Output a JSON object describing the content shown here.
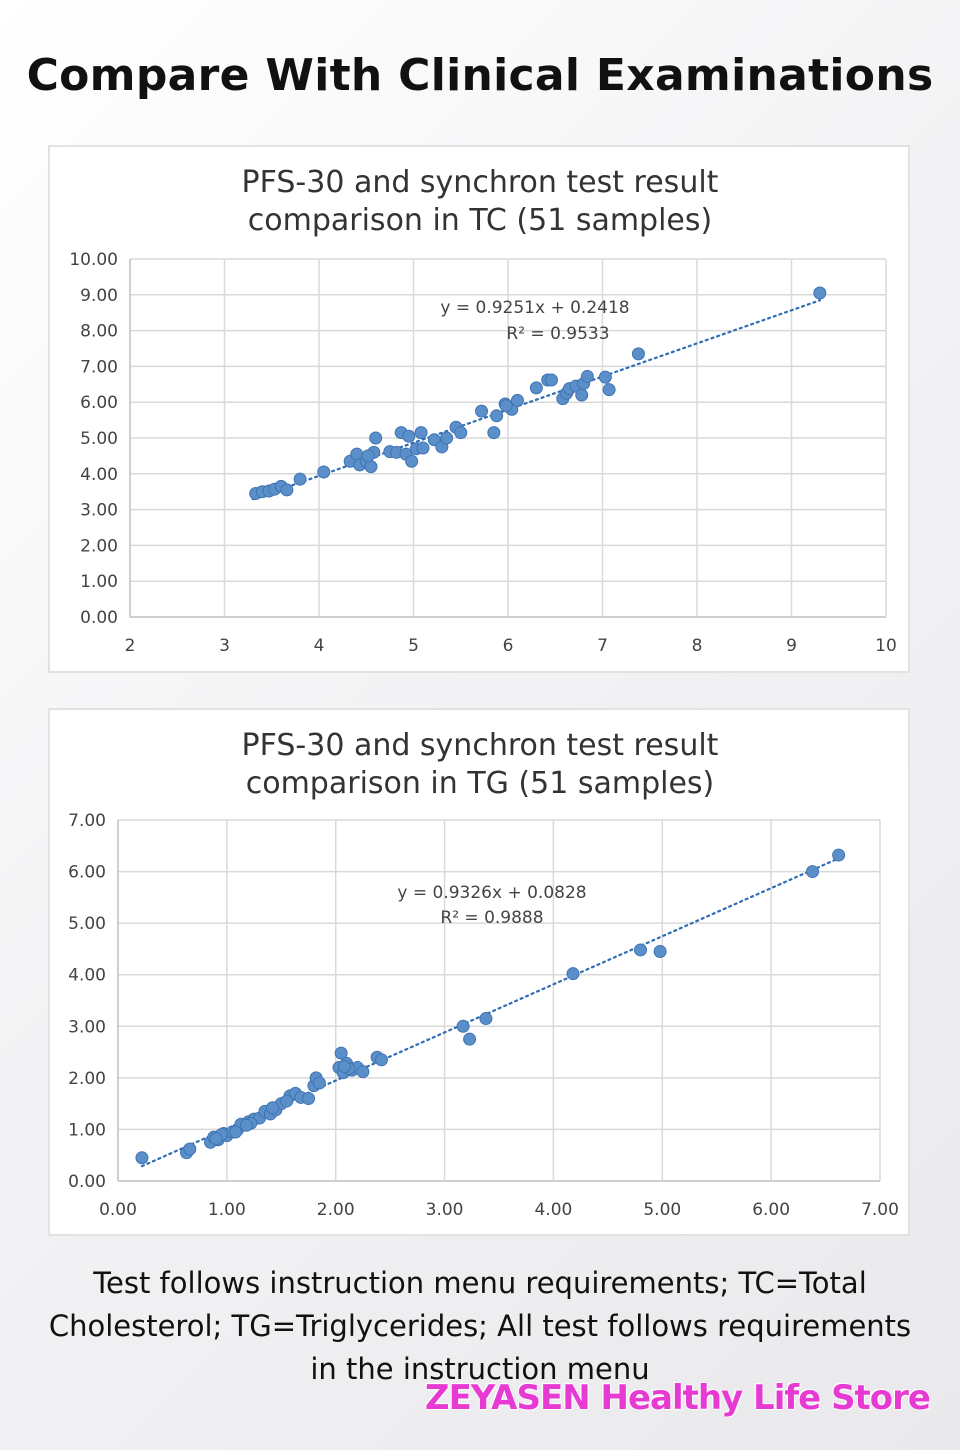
{
  "page": {
    "title": "Compare With Clinical Examinations",
    "caption": "Test follows instruction menu requirements; TC=Total Cholesterol; TG=Triglycerides; All test follows requirements in the instruction menu",
    "watermark": "ZEYASEN Healthy Life Store"
  },
  "colors": {
    "marker": "#5b8fc9",
    "marker_edge": "#3f74b3",
    "trendline": "#2f6db5",
    "grid": "#d9d9d9",
    "axis": "#bfbfbf",
    "watermark": "#e73ad3"
  },
  "chart_data": [
    {
      "type": "scatter",
      "title_lines": [
        "PFS-30 and synchron test result",
        "comparison in TC (51 samples)"
      ],
      "xlim": [
        2,
        10
      ],
      "ylim": [
        0,
        10
      ],
      "x_ticks": [
        2,
        3,
        4,
        5,
        6,
        7,
        8,
        9,
        10
      ],
      "y_ticks": [
        0,
        1,
        2,
        3,
        4,
        5,
        6,
        7,
        8,
        9,
        10
      ],
      "x_tick_labels": [
        "2",
        "3",
        "4",
        "5",
        "6",
        "7",
        "8",
        "9",
        "10"
      ],
      "y_tick_labels": [
        "0.00",
        "1.00",
        "2.00",
        "3.00",
        "4.00",
        "5.00",
        "6.00",
        "7.00",
        "8.00",
        "9.00",
        "10.00"
      ],
      "grid": true,
      "trendline": {
        "slope": 0.9251,
        "intercept": 0.2418,
        "x_range": [
          3.3,
          9.3
        ]
      },
      "equation": "y = 0.9251x + 0.2418",
      "r_squared": "R² = 0.9533",
      "points": [
        [
          3.33,
          3.45
        ],
        [
          3.4,
          3.5
        ],
        [
          3.47,
          3.52
        ],
        [
          3.53,
          3.57
        ],
        [
          3.6,
          3.65
        ],
        [
          3.66,
          3.55
        ],
        [
          3.8,
          3.85
        ],
        [
          4.05,
          4.05
        ],
        [
          4.33,
          4.35
        ],
        [
          4.4,
          4.55
        ],
        [
          4.43,
          4.25
        ],
        [
          4.5,
          4.35
        ],
        [
          4.55,
          4.2
        ],
        [
          4.58,
          4.6
        ],
        [
          4.6,
          5.0
        ],
        [
          4.75,
          4.62
        ],
        [
          4.82,
          4.6
        ],
        [
          4.87,
          5.15
        ],
        [
          4.92,
          4.55
        ],
        [
          4.95,
          5.05
        ],
        [
          4.98,
          4.35
        ],
        [
          5.03,
          4.7
        ],
        [
          5.08,
          5.15
        ],
        [
          5.1,
          4.72
        ],
        [
          5.22,
          4.95
        ],
        [
          5.3,
          4.75
        ],
        [
          5.35,
          5.0
        ],
        [
          5.45,
          5.3
        ],
        [
          5.5,
          5.15
        ],
        [
          5.72,
          5.75
        ],
        [
          5.85,
          5.15
        ],
        [
          5.88,
          5.62
        ],
        [
          5.97,
          5.95
        ],
        [
          6.04,
          5.8
        ],
        [
          6.1,
          6.05
        ],
        [
          6.3,
          6.4
        ],
        [
          6.42,
          6.62
        ],
        [
          6.46,
          6.62
        ],
        [
          6.58,
          6.1
        ],
        [
          6.62,
          6.25
        ],
        [
          6.65,
          6.38
        ],
        [
          6.72,
          6.45
        ],
        [
          6.78,
          6.2
        ],
        [
          6.8,
          6.52
        ],
        [
          6.84,
          6.72
        ],
        [
          7.03,
          6.7
        ],
        [
          7.07,
          6.35
        ],
        [
          7.38,
          7.35
        ],
        [
          9.3,
          9.05
        ],
        [
          4.52,
          4.5
        ],
        [
          5.98,
          5.9
        ]
      ]
    },
    {
      "type": "scatter",
      "title_lines": [
        "PFS-30 and synchron test result",
        "comparison in TG (51 samples)"
      ],
      "xlim": [
        0,
        7
      ],
      "ylim": [
        0,
        7
      ],
      "x_ticks": [
        0,
        1,
        2,
        3,
        4,
        5,
        6,
        7
      ],
      "y_ticks": [
        0,
        1,
        2,
        3,
        4,
        5,
        6,
        7
      ],
      "x_tick_labels": [
        "0.00",
        "1.00",
        "2.00",
        "3.00",
        "4.00",
        "5.00",
        "6.00",
        "7.00"
      ],
      "y_tick_labels": [
        "0.00",
        "1.00",
        "2.00",
        "3.00",
        "4.00",
        "5.00",
        "6.00",
        "7.00"
      ],
      "grid": true,
      "trendline": {
        "slope": 0.9326,
        "intercept": 0.0828,
        "x_range": [
          0.22,
          6.62
        ]
      },
      "equation": "y = 0.9326x + 0.0828",
      "r_squared": "R² = 0.9888",
      "points": [
        [
          0.22,
          0.45
        ],
        [
          0.63,
          0.55
        ],
        [
          0.66,
          0.62
        ],
        [
          0.85,
          0.75
        ],
        [
          0.88,
          0.85
        ],
        [
          0.92,
          0.8
        ],
        [
          0.97,
          0.92
        ],
        [
          1.0,
          0.88
        ],
        [
          1.05,
          0.95
        ],
        [
          1.1,
          1.0
        ],
        [
          1.13,
          1.1
        ],
        [
          1.2,
          1.15
        ],
        [
          1.25,
          1.2
        ],
        [
          1.3,
          1.22
        ],
        [
          1.35,
          1.35
        ],
        [
          1.4,
          1.3
        ],
        [
          1.45,
          1.38
        ],
        [
          1.5,
          1.5
        ],
        [
          1.58,
          1.65
        ],
        [
          1.63,
          1.7
        ],
        [
          1.68,
          1.62
        ],
        [
          1.75,
          1.6
        ],
        [
          1.8,
          1.85
        ],
        [
          1.82,
          2.0
        ],
        [
          1.85,
          1.9
        ],
        [
          2.03,
          2.2
        ],
        [
          2.05,
          2.48
        ],
        [
          2.07,
          2.1
        ],
        [
          2.1,
          2.28
        ],
        [
          2.15,
          2.15
        ],
        [
          2.2,
          2.2
        ],
        [
          2.25,
          2.12
        ],
        [
          2.38,
          2.4
        ],
        [
          2.42,
          2.35
        ],
        [
          3.17,
          3.0
        ],
        [
          3.23,
          2.75
        ],
        [
          3.38,
          3.15
        ],
        [
          4.18,
          4.02
        ],
        [
          4.8,
          4.48
        ],
        [
          4.98,
          4.45
        ],
        [
          6.38,
          6.0
        ],
        [
          6.62,
          6.32
        ],
        [
          0.95,
          0.9
        ],
        [
          1.08,
          0.95
        ],
        [
          1.22,
          1.12
        ],
        [
          1.42,
          1.42
        ],
        [
          1.55,
          1.55
        ],
        [
          2.12,
          2.18
        ],
        [
          0.9,
          0.82
        ],
        [
          1.18,
          1.08
        ],
        [
          2.08,
          2.22
        ]
      ]
    }
  ]
}
